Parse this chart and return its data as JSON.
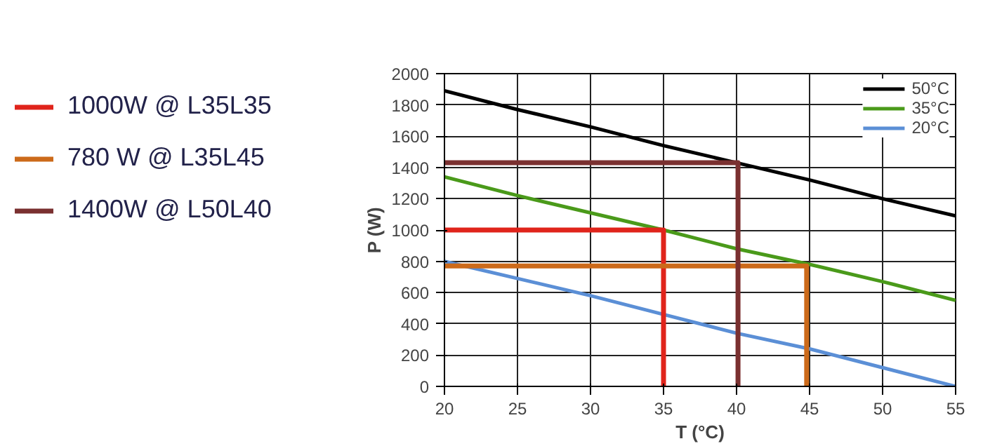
{
  "chart_data": {
    "type": "line",
    "xlabel": "T (°C)",
    "ylabel": "P (W)",
    "xlim": [
      20,
      55
    ],
    "xticks": [
      20,
      25,
      30,
      35,
      40,
      45,
      50,
      55
    ],
    "ylim": [
      0,
      2000
    ],
    "yticks": [
      0,
      200,
      400,
      600,
      800,
      1000,
      1200,
      1400,
      1600,
      1800,
      2000
    ],
    "grid": true,
    "legend": "left",
    "line_style": "solid",
    "marker": "none",
    "series": [
      {
        "name": "50°C",
        "color": "#000000",
        "x": [
          20,
          25,
          30,
          35,
          40,
          45,
          50,
          55
        ],
        "values": [
          1890,
          1770,
          1660,
          1540,
          1430,
          1320,
          1200,
          1090
        ]
      },
      {
        "name": "35°C",
        "color": "#4a9a1a",
        "x": [
          20,
          25,
          30,
          35,
          40,
          45,
          50,
          55
        ],
        "values": [
          1340,
          1220,
          1110,
          1000,
          880,
          780,
          670,
          550
        ]
      },
      {
        "name": "20°C",
        "color": "#5b8fd6",
        "x": [
          20,
          25,
          30,
          35,
          40,
          45,
          50,
          55
        ],
        "values": [
          800,
          690,
          580,
          460,
          340,
          240,
          120,
          0
        ]
      },
      {
        "name": "1000W @ L35L35",
        "type": "step",
        "color": "#e0241b",
        "x": [
          20,
          35,
          35
        ],
        "values": [
          1000,
          1000,
          0
        ]
      },
      {
        "name": "780 W @ L35L45",
        "type": "step",
        "color": "#cc6a1a",
        "x": [
          20,
          44.8,
          44.8
        ],
        "values": [
          770,
          770,
          0
        ]
      },
      {
        "name": "1400W @ L50L40",
        "type": "step",
        "color": "#7a3030",
        "x": [
          20,
          40.1,
          40.1
        ],
        "values": [
          1430,
          1430,
          0
        ]
      }
    ]
  }
}
